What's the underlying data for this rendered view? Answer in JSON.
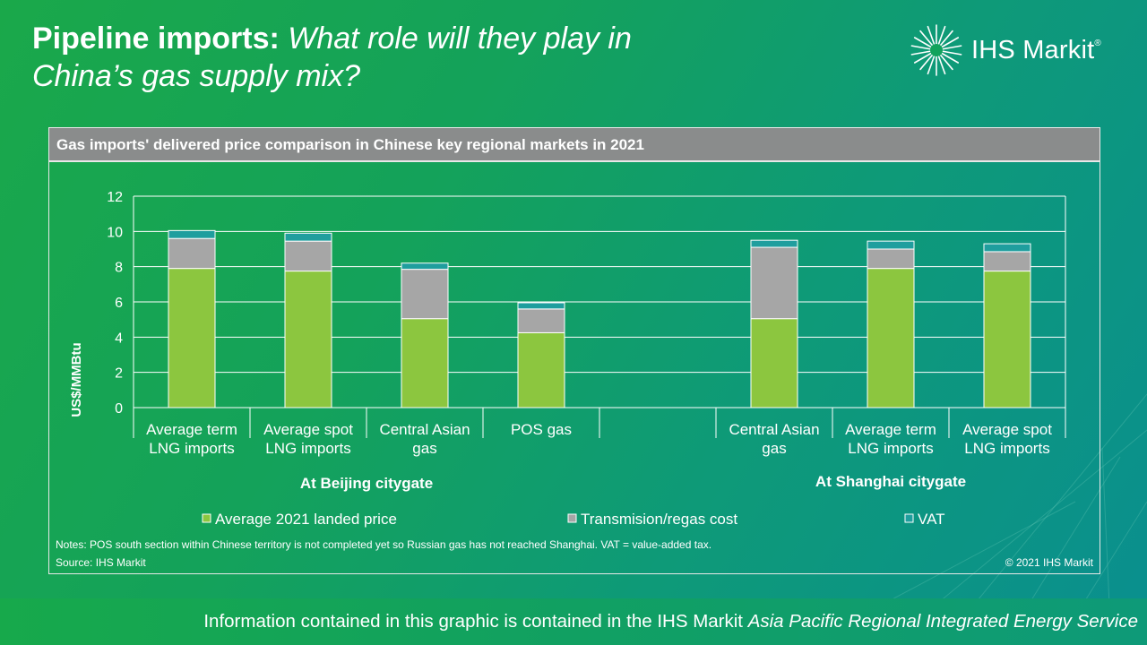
{
  "title": {
    "bold": "Pipeline imports:",
    "italic_line1": "What role will they play in",
    "italic_line2": "China’s gas supply mix?"
  },
  "logo": {
    "text": "IHS Markit",
    "mark": "®"
  },
  "panel": {
    "header": "Gas imports' delivered price comparison in Chinese key regional markets in 2021",
    "notes": "Notes:  POS south section within Chinese territory is not completed yet so Russian gas has not reached Shanghai. VAT = value-added  tax.",
    "source": "Source: IHS Markit",
    "copyright": "© 2021 IHS Markit"
  },
  "footer": {
    "text": "Information contained in this graphic is contained in the IHS Markit ",
    "italic": "Asia Pacific Regional Integrated Energy Service"
  },
  "colors": {
    "landed": "#8cc63f",
    "transmission": "#a6a6a6",
    "vat": "#1f9e9e",
    "grid": "#ffffff"
  },
  "chart_data": {
    "type": "bar",
    "stacked": true,
    "ylabel": "US$/MMBtu",
    "ylim": [
      0,
      12
    ],
    "yticks": [
      0,
      2,
      4,
      6,
      8,
      10,
      12
    ],
    "grid": true,
    "legend_position": "bottom",
    "categories": [
      [
        "Average term",
        "LNG imports"
      ],
      [
        "Average spot",
        "LNG imports"
      ],
      [
        "Central Asian",
        "gas"
      ],
      [
        "POS gas"
      ],
      [],
      [
        "Central Asian",
        "gas"
      ],
      [
        "Average term",
        "LNG imports"
      ],
      [
        "Average spot",
        "LNG imports"
      ]
    ],
    "groups": [
      {
        "label": "At Beijing citygate",
        "categories": [
          0,
          1,
          2,
          3
        ]
      },
      {
        "label": "At Shanghai citygate",
        "categories": [
          5,
          6,
          7
        ]
      }
    ],
    "series": [
      {
        "name": "Average 2021 landed price",
        "values": [
          7.9,
          7.75,
          5.05,
          4.25,
          null,
          5.05,
          7.9,
          7.75
        ]
      },
      {
        "name": "Transmision/regas cost",
        "values": [
          1.7,
          1.7,
          2.8,
          1.35,
          null,
          4.05,
          1.1,
          1.1
        ]
      },
      {
        "name": "VAT",
        "values": [
          0.45,
          0.45,
          0.35,
          0.35,
          null,
          0.4,
          0.45,
          0.45
        ]
      }
    ]
  }
}
